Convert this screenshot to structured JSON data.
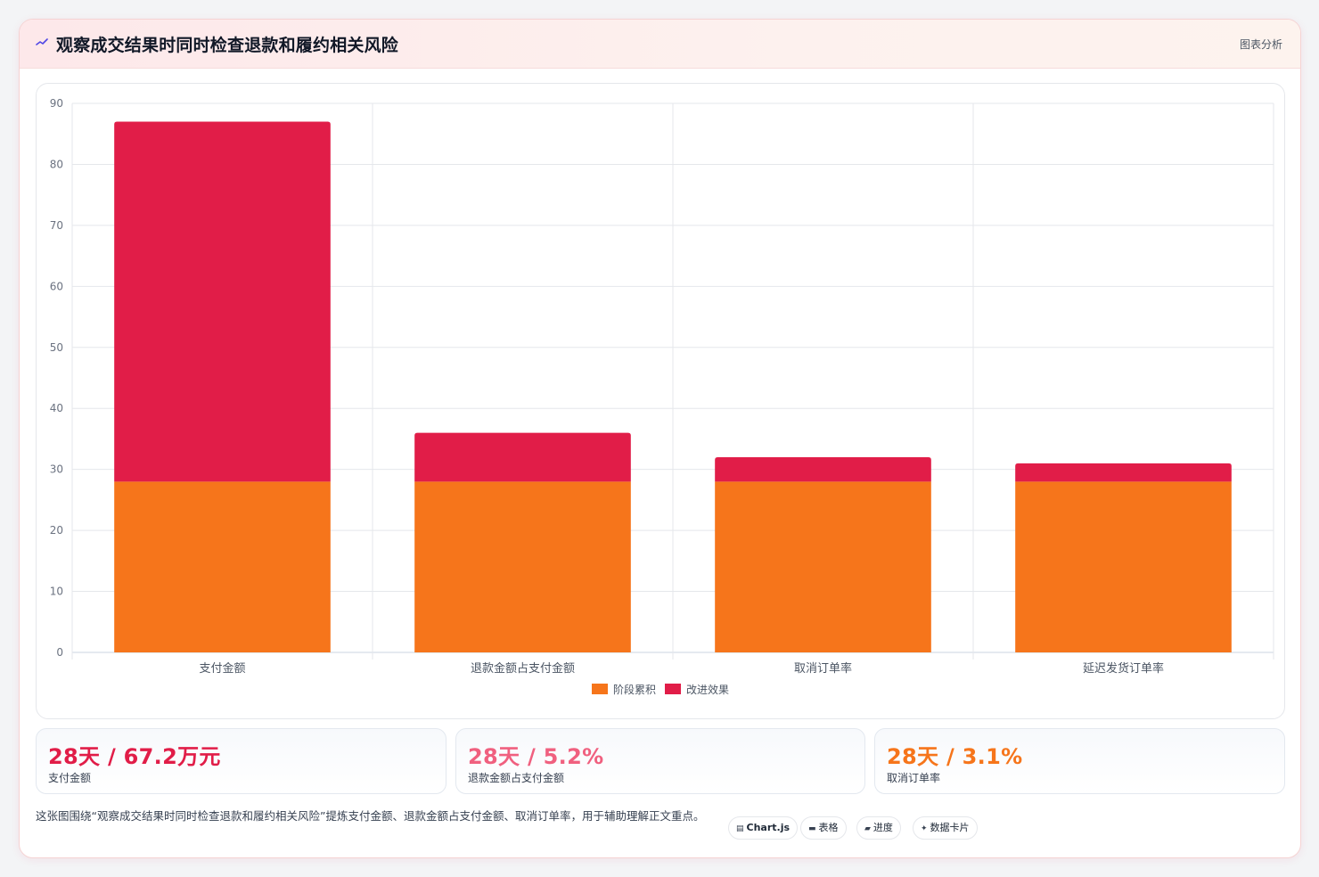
{
  "header": {
    "icon": "trend-line-icon",
    "title": "观察成交结果时同时检查退款和履约相关风险",
    "link_label": "图表分析"
  },
  "chart_data": {
    "type": "bar",
    "stacked": true,
    "categories": [
      "支付金额",
      "退款金额占支付金额",
      "取消订单率",
      "延迟发货订单率"
    ],
    "series": [
      {
        "name": "阶段累积",
        "values": [
          28,
          28,
          28,
          28
        ],
        "color": "#f6751b"
      },
      {
        "name": "改进效果",
        "values": [
          59,
          8,
          4,
          3
        ],
        "color": "#e11d48"
      }
    ],
    "ylim": [
      0,
      90
    ],
    "yticks": [
      0,
      10,
      20,
      30,
      40,
      50,
      60,
      70,
      80,
      90
    ],
    "grid": true,
    "legend_position": "bottom"
  },
  "kpis": [
    {
      "value": "28天 / 67.2万元",
      "label": "支付金额",
      "color": "#e11d48"
    },
    {
      "value": "28天 / 5.2%",
      "label": "退款金额占支付金额",
      "color": "#f0607f"
    },
    {
      "value": "28天 / 3.1%",
      "label": "取消订单率",
      "color": "#f6751b"
    }
  ],
  "caption": "这张图围绕“观察成交结果时同时检查退款和履约相关风险”提炼支付金额、退款金额占支付金额、取消订单率，用于辅助理解正文重点。",
  "tags": [
    {
      "icon": "chart-icon",
      "glyph": "▤",
      "label": "Chart.js"
    },
    {
      "icon": "table-icon",
      "glyph": "▬",
      "label": "表格"
    },
    {
      "icon": "progress-icon",
      "glyph": "▰",
      "label": "进度"
    },
    {
      "icon": "sparkle-icon",
      "glyph": "✦",
      "label": "数据卡片"
    }
  ]
}
